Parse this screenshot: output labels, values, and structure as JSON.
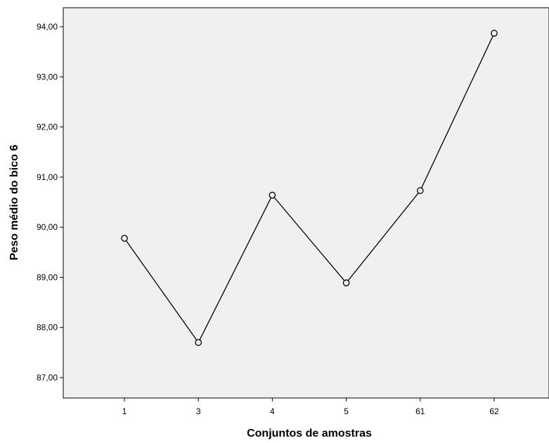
{
  "chart_data": {
    "type": "line",
    "title": "",
    "xlabel": "Conjuntos de amostras",
    "ylabel": "Peso médio do bico 6",
    "categories": [
      "1",
      "3",
      "4",
      "5",
      "61",
      "62"
    ],
    "series": [
      {
        "values": [
          89.78,
          87.7,
          90.64,
          88.89,
          90.73,
          93.87
        ]
      }
    ],
    "y_ticks": [
      "87,00",
      "88,00",
      "89,00",
      "90,00",
      "91,00",
      "92,00",
      "93,00",
      "94,00"
    ],
    "ylim": [
      86.6,
      94.36
    ],
    "grid": false,
    "legend": "none",
    "marker": "open-circle",
    "colors": {
      "plot_background": "#f0f0f0",
      "line": "#000000",
      "marker_fill": "#f0f0f0"
    }
  }
}
